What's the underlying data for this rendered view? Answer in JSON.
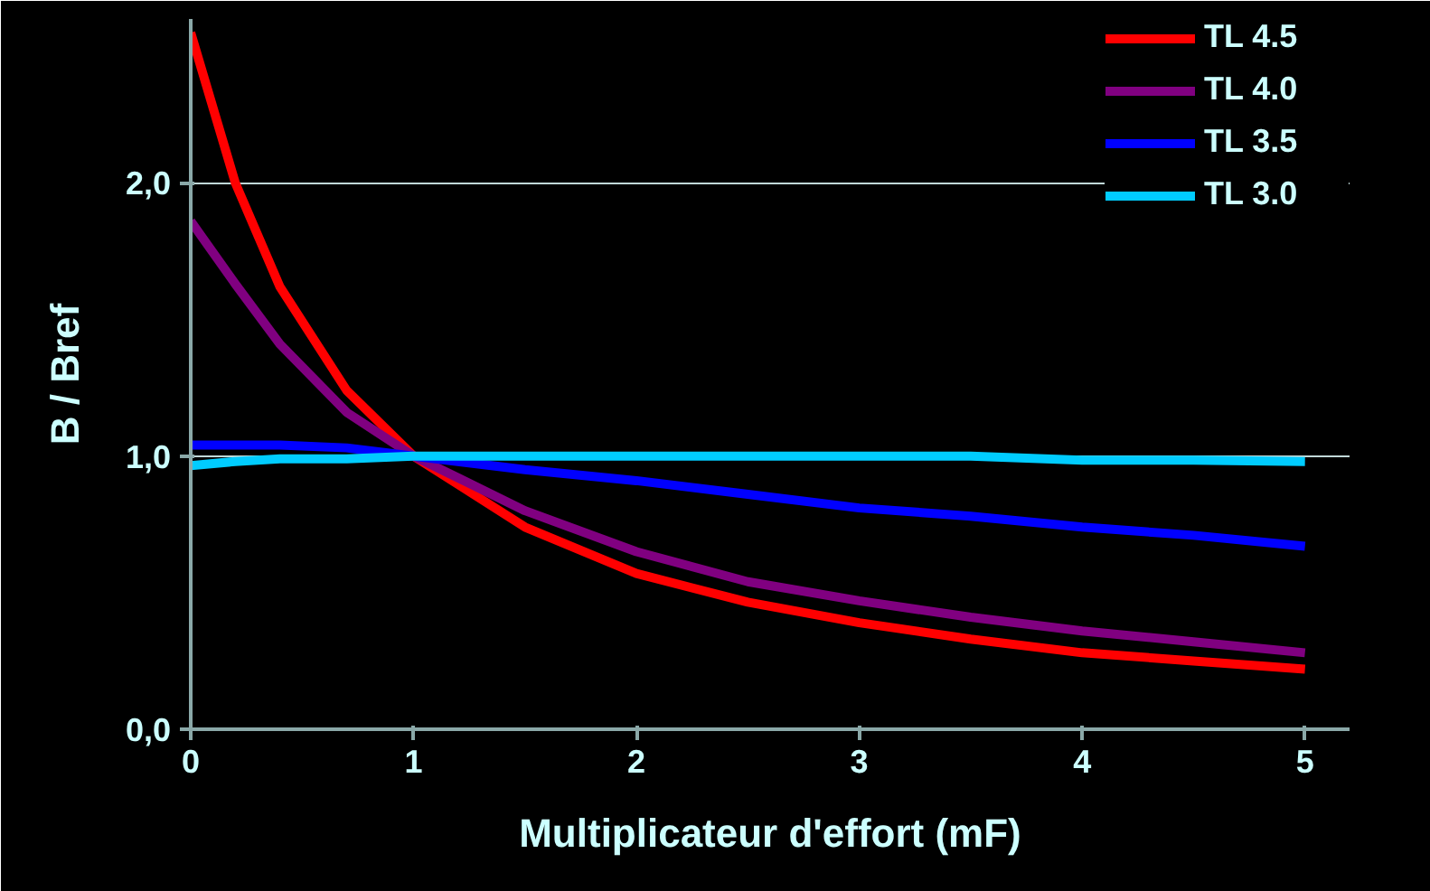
{
  "chart_data": {
    "type": "line",
    "xlabel": "Multiplicateur d'effort (mF)",
    "ylabel": "B / Bref",
    "xlim": [
      0,
      5.2
    ],
    "ylim": [
      0,
      2.6
    ],
    "xticks": [
      0,
      1,
      2,
      3,
      4,
      5
    ],
    "yticks": [
      {
        "value": 0,
        "label": "0,0"
      },
      {
        "value": 1,
        "label": "1,0"
      },
      {
        "value": 2,
        "label": "2,0"
      }
    ],
    "grid": "y",
    "legend": "top right",
    "marker": "none",
    "line_style": "solid",
    "x": [
      0,
      0.2,
      0.4,
      0.7,
      1,
      1.5,
      2,
      2.5,
      3,
      3.5,
      4,
      4.5,
      5
    ],
    "series": [
      {
        "name": "TL 4.5",
        "color": "#ff0000",
        "values": [
          2.55,
          2.0,
          1.62,
          1.24,
          1.0,
          0.74,
          0.57,
          0.465,
          0.39,
          0.33,
          0.28,
          0.25,
          0.22
        ]
      },
      {
        "name": "TL 4.0",
        "color": "#800080",
        "values": [
          1.86,
          1.63,
          1.41,
          1.16,
          1.0,
          0.8,
          0.65,
          0.54,
          0.47,
          0.41,
          0.36,
          0.32,
          0.28
        ]
      },
      {
        "name": "TL 3.5",
        "color": "#0000ff",
        "values": [
          1.04,
          1.04,
          1.04,
          1.03,
          1.0,
          0.95,
          0.91,
          0.86,
          0.81,
          0.78,
          0.74,
          0.71,
          0.67
        ]
      },
      {
        "name": "TL 3.0",
        "color": "#00ccff",
        "values": [
          0.965,
          0.98,
          0.99,
          0.99,
          1.0,
          1.0,
          1.0,
          1.0,
          1.0,
          1.0,
          0.985,
          0.985,
          0.98
        ]
      }
    ]
  }
}
